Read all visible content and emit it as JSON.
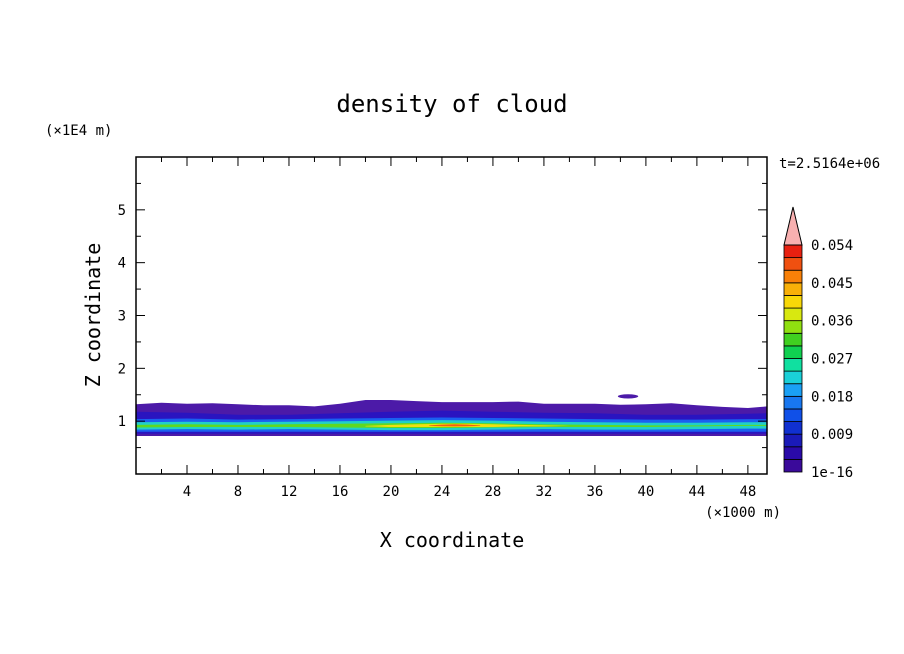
{
  "chart_data": {
    "type": "heatmap",
    "title": "density of cloud",
    "xlabel": "X coordinate",
    "ylabel": "Z coordinate",
    "x_unit": "(×1000 m)",
    "y_unit": "(×1E4 m)",
    "time_label": "t=2.5164e+06",
    "xlim": [
      0,
      49.5
    ],
    "ylim": [
      0,
      6
    ],
    "x_ticks": [
      "4",
      "8",
      "12",
      "16",
      "20",
      "24",
      "28",
      "32",
      "36",
      "40",
      "44",
      "48"
    ],
    "y_ticks": [
      "1",
      "2",
      "3",
      "4",
      "5"
    ],
    "grid": false,
    "colorbar": {
      "labels": [
        "1e-16",
        "0.009",
        "0.018",
        "0.027",
        "0.036",
        "0.045",
        "0.054"
      ],
      "colors": [
        "#3a0a9a",
        "#2a0aa8",
        "#1a1ab8",
        "#1030d0",
        "#1050e8",
        "#1877f0",
        "#1aa0f5",
        "#1ad0d8",
        "#10e0a0",
        "#10d050",
        "#40d020",
        "#90e010",
        "#d8e810",
        "#f8d808",
        "#f8b008",
        "#f88008",
        "#f05010",
        "#e82010",
        "#f8b0b0"
      ],
      "extend": "max"
    },
    "layers": [
      {
        "level": 0.003,
        "color": "#4c1aa8",
        "x": [
          0,
          2,
          4,
          6,
          8,
          10,
          12,
          14,
          16,
          18,
          20,
          22,
          24,
          26,
          28,
          30,
          32,
          34,
          36,
          38,
          40,
          42,
          44,
          46,
          48,
          49.5
        ],
        "z_bottom": [
          0.72,
          0.72,
          0.72,
          0.72,
          0.72,
          0.72,
          0.72,
          0.72,
          0.72,
          0.72,
          0.72,
          0.72,
          0.72,
          0.72,
          0.72,
          0.72,
          0.72,
          0.72,
          0.72,
          0.72,
          0.72,
          0.72,
          0.72,
          0.72,
          0.72,
          0.72
        ],
        "z_top": [
          1.32,
          1.35,
          1.33,
          1.34,
          1.32,
          1.3,
          1.3,
          1.28,
          1.33,
          1.4,
          1.4,
          1.38,
          1.36,
          1.36,
          1.36,
          1.37,
          1.33,
          1.33,
          1.33,
          1.31,
          1.32,
          1.34,
          1.3,
          1.27,
          1.25,
          1.28
        ]
      },
      {
        "level": 0.009,
        "color": "#2a14c0",
        "x": [
          0,
          4,
          8,
          12,
          16,
          20,
          24,
          28,
          32,
          36,
          40,
          44,
          48,
          49.5
        ],
        "z_bottom": [
          0.76,
          0.76,
          0.76,
          0.76,
          0.76,
          0.76,
          0.76,
          0.76,
          0.76,
          0.76,
          0.76,
          0.76,
          0.76,
          0.76
        ],
        "z_top": [
          1.18,
          1.16,
          1.12,
          1.12,
          1.15,
          1.18,
          1.2,
          1.18,
          1.16,
          1.15,
          1.12,
          1.12,
          1.14,
          1.15
        ]
      },
      {
        "level": 0.018,
        "color": "#1a60f0",
        "x": [
          0,
          4,
          8,
          12,
          16,
          20,
          24,
          28,
          32,
          36,
          40,
          44,
          48,
          49.5
        ],
        "z_bottom": [
          0.8,
          0.8,
          0.8,
          0.8,
          0.8,
          0.8,
          0.8,
          0.8,
          0.8,
          0.8,
          0.8,
          0.8,
          0.8,
          0.8
        ],
        "z_top": [
          1.04,
          1.05,
          1.03,
          1.04,
          1.05,
          1.06,
          1.07,
          1.06,
          1.05,
          1.04,
          1.03,
          1.03,
          1.04,
          1.04
        ]
      },
      {
        "level": 0.027,
        "color": "#20d0c8",
        "x": [
          0,
          4,
          8,
          12,
          16,
          20,
          24,
          28,
          32,
          36,
          40,
          44,
          48,
          49.5
        ],
        "z_bottom": [
          0.84,
          0.85,
          0.84,
          0.85,
          0.84,
          0.83,
          0.83,
          0.84,
          0.85,
          0.84,
          0.84,
          0.85,
          0.86,
          0.86
        ],
        "z_top": [
          0.98,
          0.99,
          0.98,
          0.99,
          1.0,
          1.01,
          1.02,
          1.01,
          0.99,
          0.98,
          0.97,
          0.97,
          0.98,
          0.98
        ]
      },
      {
        "level": 0.036,
        "color": "#60d820",
        "x": [
          0,
          4,
          8,
          12,
          16,
          20,
          24,
          28,
          32,
          36,
          40,
          44,
          48,
          49.5
        ],
        "z_bottom": [
          0.88,
          0.89,
          0.89,
          0.89,
          0.88,
          0.87,
          0.87,
          0.88,
          0.89,
          0.89,
          0.89,
          0.9,
          0.91,
          0.91
        ],
        "z_top": [
          0.93,
          0.94,
          0.93,
          0.94,
          0.95,
          0.96,
          0.97,
          0.96,
          0.94,
          0.93,
          0.92,
          0.92,
          0.93,
          0.93
        ]
      },
      {
        "level": 0.045,
        "color": "#f0e010",
        "x": [
          18,
          20,
          22,
          24,
          26,
          28,
          30,
          32,
          34
        ],
        "z_bottom": [
          0.9,
          0.89,
          0.89,
          0.89,
          0.89,
          0.89,
          0.9,
          0.9,
          0.91
        ],
        "z_top": [
          0.91,
          0.93,
          0.94,
          0.95,
          0.95,
          0.94,
          0.93,
          0.92,
          0.91
        ]
      },
      {
        "level": 0.054,
        "color": "#f06010",
        "x": [
          23,
          24,
          25,
          26,
          27
        ],
        "z_bottom": [
          0.91,
          0.905,
          0.9,
          0.905,
          0.91
        ],
        "z_top": [
          0.92,
          0.935,
          0.94,
          0.935,
          0.92
        ]
      }
    ],
    "blobs": [
      {
        "level": 0.003,
        "color": "#4c1aa8",
        "x": 38.6,
        "z": 1.47,
        "w": 1.6,
        "h": 0.08
      }
    ]
  }
}
